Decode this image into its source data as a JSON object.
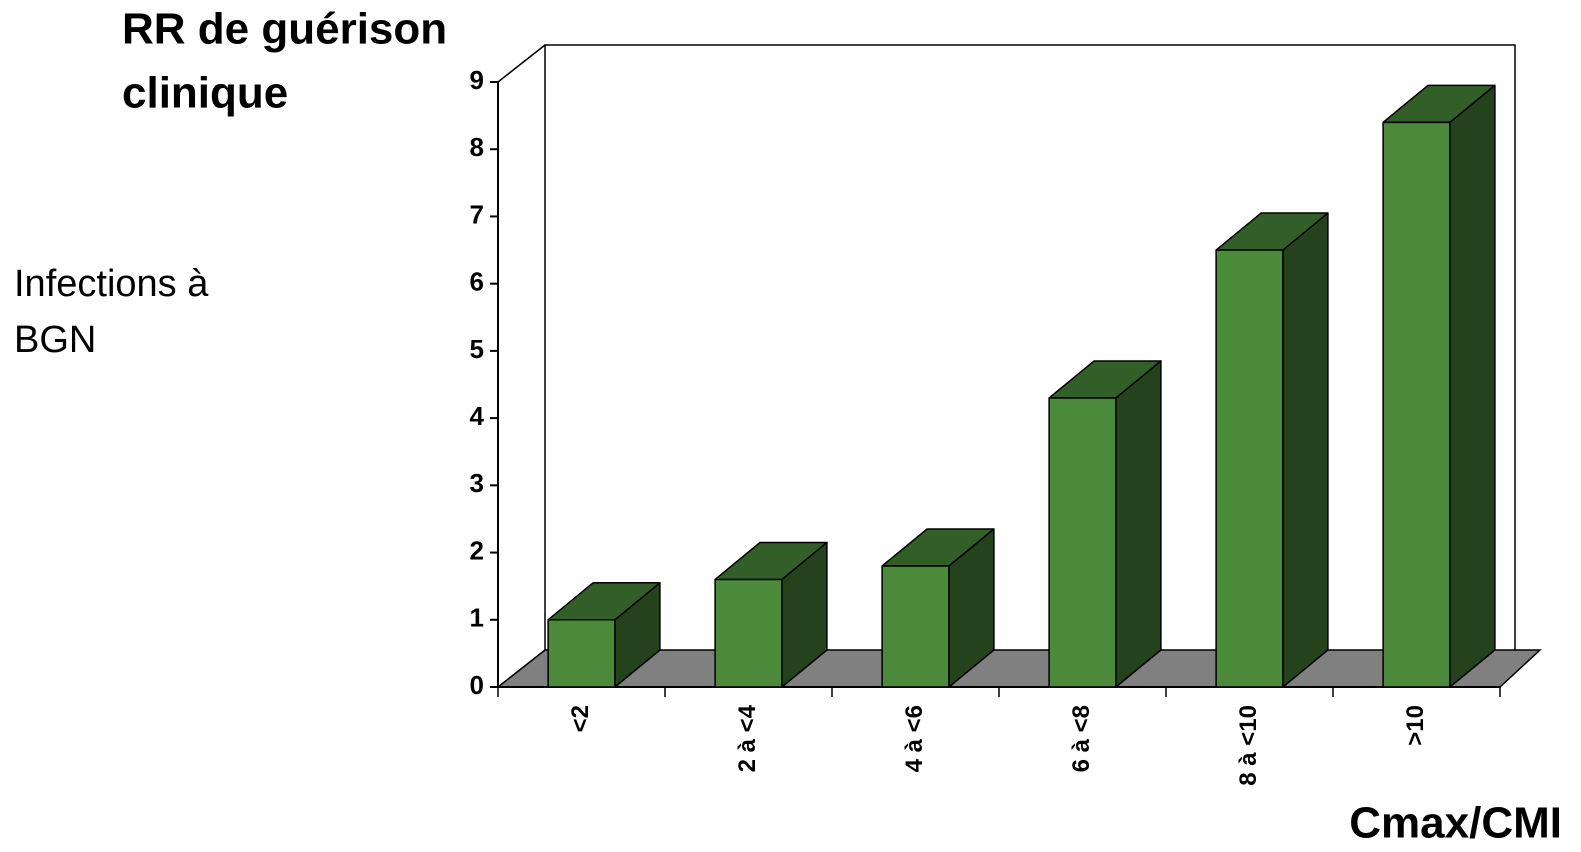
{
  "chart_data": {
    "type": "bar3d",
    "y_label": [
      "RR de guérison",
      "clinique"
    ],
    "x_label": "Cmax/CMI",
    "annotation": [
      "Infections à",
      "BGN"
    ],
    "categories": [
      "<2",
      "2 à <4",
      "4 à <6",
      "6 à <8",
      "8 à <10",
      ">10"
    ],
    "values": [
      1,
      1.6,
      1.8,
      4.3,
      6.5,
      8.4
    ],
    "color": "#4a8a3a",
    "ylim": [
      0,
      9
    ],
    "yticks": [
      0,
      1,
      2,
      3,
      4,
      5,
      6,
      7,
      8,
      9
    ],
    "grid": false
  }
}
